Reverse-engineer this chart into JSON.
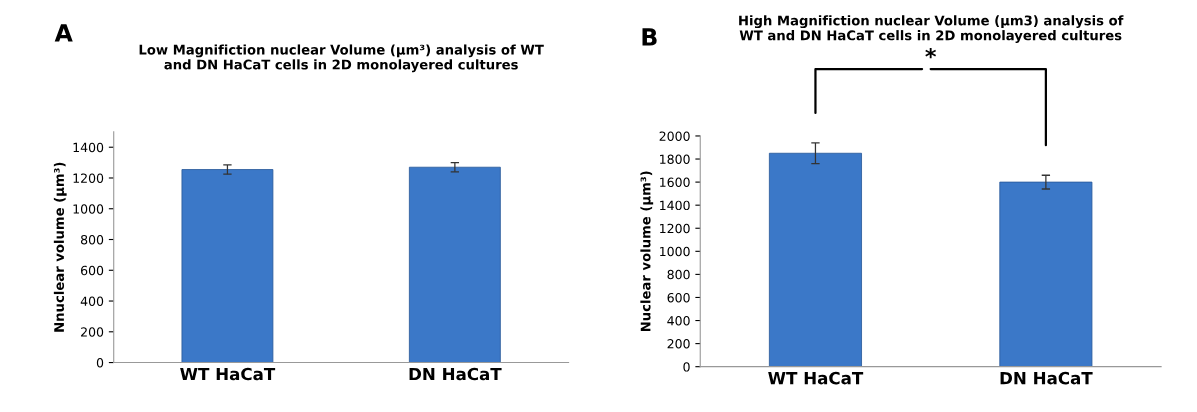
{
  "chart_data": [
    {
      "type": "bar",
      "title": "Low Magnifiction nuclear Volume (µm³) analysis of WT\nand DN HaCaT cells in 2D monolayered cultures",
      "ylabel": "Nnuclear volume (µm³)",
      "categories": [
        "WT HaCaT",
        "DN HaCaT"
      ],
      "values": [
        1255,
        1270
      ],
      "errors": [
        30,
        30
      ],
      "color": "#3b78c8",
      "ylim": [
        0,
        1500
      ],
      "yticks": [
        0,
        200,
        400,
        600,
        800,
        1000,
        1200,
        1400
      ],
      "grid": false,
      "annotations": [
        "A"
      ]
    },
    {
      "type": "bar",
      "title": "High Magnifiction nuclear Volume (µm3) analysis of\nWT and DN HaCaT cells in 2D monolayered cultures",
      "ylabel": "Nuclear volume (µm³)",
      "categories": [
        "WT HaCaT",
        "DN HaCaT"
      ],
      "values": [
        1850,
        1600
      ],
      "errors": [
        90,
        60
      ],
      "color": "#3b78c8",
      "ylim": [
        0,
        2000
      ],
      "yticks": [
        0,
        200,
        400,
        600,
        800,
        1000,
        1200,
        1400,
        1600,
        1800,
        2000
      ],
      "grid": false,
      "annotations": [
        "B",
        "*"
      ]
    }
  ]
}
